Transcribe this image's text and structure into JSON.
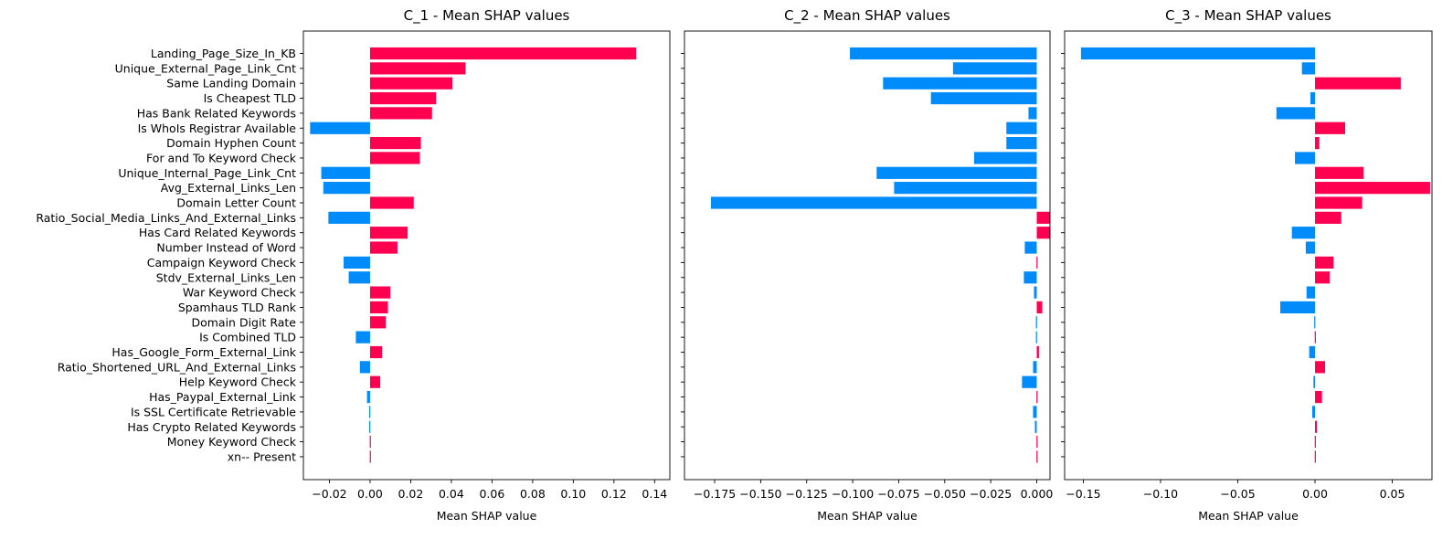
{
  "chart_data": [
    {
      "type": "bar",
      "orientation": "horizontal",
      "title": "C_1 - Mean SHAP values",
      "xlabel": "Mean SHAP value",
      "xlim": [
        -0.0328,
        0.1475
      ],
      "ticks": [
        -0.02,
        0.0,
        0.02,
        0.04,
        0.06,
        0.08,
        0.1,
        0.12,
        0.14
      ],
      "tick_labels": [
        "−0.02",
        "0.00",
        "0.02",
        "0.04",
        "0.06",
        "0.08",
        "0.10",
        "0.12",
        "0.14"
      ],
      "values": [
        0.131,
        0.047,
        0.0405,
        0.0325,
        0.0305,
        -0.0295,
        0.025,
        0.0245,
        -0.024,
        -0.023,
        0.0215,
        -0.0205,
        0.0185,
        0.0135,
        -0.013,
        -0.0105,
        0.01,
        0.0088,
        0.0078,
        -0.007,
        0.006,
        -0.005,
        0.005,
        -0.0015,
        -0.0005,
        -0.0005,
        0.0,
        0.0
      ]
    },
    {
      "type": "bar",
      "orientation": "horizontal",
      "title": "C_2 - Mean SHAP values",
      "xlabel": "Mean SHAP value",
      "xlim": [
        -0.1914,
        0.0072
      ],
      "ticks": [
        -0.175,
        -0.15,
        -0.125,
        -0.1,
        -0.075,
        -0.05,
        -0.025,
        0.0
      ],
      "tick_labels": [
        "−0.175",
        "−0.150",
        "−0.125",
        "−0.100",
        "−0.075",
        "−0.050",
        "−0.025",
        "0.000"
      ],
      "values": [
        -0.1015,
        -0.0455,
        -0.0835,
        -0.0575,
        -0.0045,
        -0.0165,
        -0.0165,
        -0.034,
        -0.087,
        -0.0775,
        -0.177,
        0.007,
        0.0072,
        -0.0065,
        0.0,
        -0.007,
        -0.0015,
        0.003,
        -0.0005,
        -0.0003,
        0.0012,
        -0.002,
        -0.008,
        0.0,
        -0.002,
        -0.001,
        0.0005,
        0.0
      ]
    },
    {
      "type": "bar",
      "orientation": "horizontal",
      "title": "C_3 - Mean SHAP values",
      "xlabel": "Mean SHAP value",
      "xlim": [
        -0.1621,
        0.0757
      ],
      "ticks": [
        -0.15,
        -0.1,
        -0.05,
        0.0,
        0.05
      ],
      "tick_labels": [
        "−0.15",
        "−0.10",
        "−0.05",
        "0.00",
        "0.05"
      ],
      "values": [
        -0.1515,
        -0.0085,
        0.0555,
        -0.003,
        -0.025,
        0.0195,
        0.0028,
        -0.013,
        0.0315,
        0.0745,
        0.0305,
        0.017,
        -0.015,
        -0.006,
        0.012,
        0.0095,
        -0.0055,
        -0.0225,
        -0.0005,
        0.0,
        -0.0038,
        0.0065,
        -0.001,
        0.0045,
        -0.0018,
        0.0012,
        0.0,
        0.0
      ]
    }
  ],
  "categories": [
    "Landing_Page_Size_In_KB",
    "Unique_External_Page_Link_Cnt",
    "Same Landing Domain",
    "Is Cheapest TLD",
    "Has Bank Related Keywords",
    "Is WhoIs Registrar Available",
    "Domain Hyphen Count",
    "For and To Keyword Check",
    "Unique_Internal_Page_Link_Cnt",
    "Avg_External_Links_Len",
    "Domain Letter Count",
    "Ratio_Social_Media_Links_And_External_Links",
    "Has Card Related Keywords",
    "Number Instead of Word",
    "Campaign Keyword Check",
    "Stdv_External_Links_Len",
    "War Keyword Check",
    "Spamhaus TLD Rank",
    "Domain Digit Rate",
    "Is Combined TLD",
    "Has_Google_Form_External_Link",
    "Ratio_Shortened_URL_And_External_Links",
    "Help Keyword Check",
    "Has_Paypal_External_Link",
    "Is SSL Certificate Retrievable",
    "Has Crypto Related Keywords",
    "Money Keyword Check",
    "xn-- Present"
  ],
  "colors": {
    "positive": "#ff0051",
    "negative": "#008bfb",
    "axis": "#000000"
  }
}
